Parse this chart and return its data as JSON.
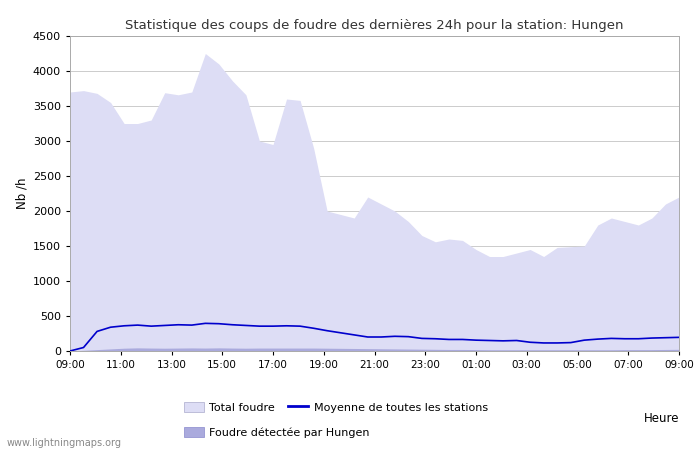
{
  "title": "Statistique des coups de foudre des dernières 24h pour la station: Hungen",
  "xlabel": "Heure",
  "ylabel": "Nb /h",
  "watermark": "www.lightningmaps.org",
  "x_ticks": [
    "09:00",
    "11:00",
    "13:00",
    "15:00",
    "17:00",
    "19:00",
    "21:00",
    "23:00",
    "01:00",
    "03:00",
    "05:00",
    "07:00",
    "09:00"
  ],
  "ylim": [
    0,
    4500
  ],
  "yticks": [
    0,
    500,
    1000,
    1500,
    2000,
    2500,
    3000,
    3500,
    4000,
    4500
  ],
  "total_foudre_color": "#ddddf5",
  "hungen_color": "#aaaadd",
  "moyenne_color": "#0000cc",
  "background_color": "#ffffff",
  "grid_color": "#cccccc",
  "legend_labels": [
    "Total foudre",
    "Moyenne de toutes les stations",
    "Foudre détectée par Hungen"
  ],
  "total_foudre": [
    3700,
    3720,
    3680,
    3550,
    3250,
    3250,
    3300,
    3690,
    3660,
    3700,
    4250,
    4100,
    3860,
    3660,
    3000,
    2950,
    3600,
    3580,
    2900,
    2000,
    1950,
    1900,
    2200,
    2100,
    2000,
    1850,
    1650,
    1560,
    1600,
    1580,
    1450,
    1350,
    1350,
    1400,
    1450,
    1350,
    1480,
    1490,
    1500,
    1800,
    1900,
    1850,
    1800,
    1900,
    2100,
    2200
  ],
  "hungen": [
    0,
    10,
    20,
    30,
    40,
    45,
    42,
    40,
    42,
    44,
    42,
    45,
    42,
    40,
    42,
    42,
    42,
    42,
    42,
    40,
    38,
    36,
    34,
    32,
    30,
    28,
    26,
    24,
    22,
    22,
    20,
    18,
    18,
    18,
    18,
    18,
    18,
    18,
    18,
    18,
    18,
    20,
    20,
    20,
    22,
    24
  ],
  "moyenne": [
    0,
    50,
    280,
    340,
    360,
    370,
    355,
    365,
    375,
    370,
    395,
    390,
    375,
    365,
    355,
    355,
    360,
    355,
    325,
    290,
    260,
    230,
    200,
    200,
    210,
    205,
    180,
    175,
    165,
    165,
    155,
    150,
    145,
    150,
    125,
    115,
    115,
    120,
    155,
    170,
    180,
    175,
    175,
    185,
    190,
    195
  ]
}
